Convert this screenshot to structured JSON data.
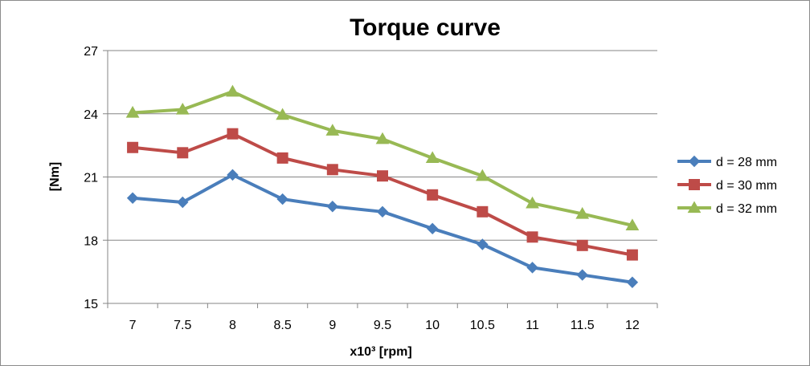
{
  "chart_data": {
    "type": "line",
    "title": "Torque curve",
    "xlabel": "x10³ [rpm]",
    "ylabel": "[Nm]",
    "categories": [
      "7",
      "7.5",
      "8",
      "8.5",
      "9",
      "9.5",
      "10",
      "10.5",
      "11",
      "11.5",
      "12"
    ],
    "ylim": [
      15,
      27
    ],
    "yticks": [
      "15",
      "18",
      "21",
      "24",
      "27"
    ],
    "grid": true,
    "legend_position": "right",
    "series": [
      {
        "name": "d = 28 mm",
        "color": "#4a7ebb",
        "marker": "diamond",
        "values": [
          20.0,
          19.8,
          21.1,
          19.95,
          19.6,
          19.35,
          18.55,
          17.8,
          16.7,
          16.35,
          16.0
        ]
      },
      {
        "name": "d = 30 mm",
        "color": "#be4b48",
        "marker": "square",
        "values": [
          22.4,
          22.15,
          23.05,
          21.9,
          21.35,
          21.05,
          20.15,
          19.35,
          18.15,
          17.75,
          17.3
        ]
      },
      {
        "name": "d = 32 mm",
        "color": "#98b954",
        "marker": "triangle",
        "values": [
          24.05,
          24.2,
          25.05,
          23.95,
          23.2,
          22.8,
          21.9,
          21.05,
          19.75,
          19.25,
          18.7
        ]
      }
    ]
  }
}
